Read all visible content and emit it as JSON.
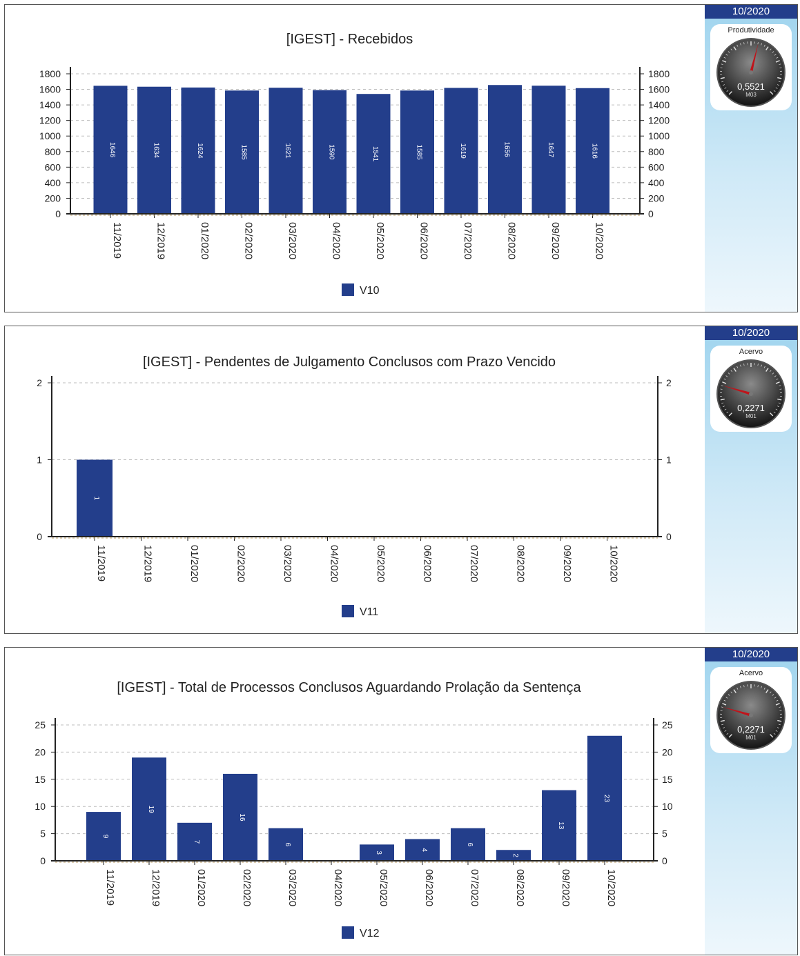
{
  "colors": {
    "bar": "#233e8b",
    "header": "#233e8b",
    "needle": "#c0141b"
  },
  "panels": [
    {
      "chart_data": {
        "type": "bar",
        "title": "[IGEST]  - Recebidos",
        "categories": [
          "11/2019",
          "12/2019",
          "01/2020",
          "02/2020",
          "03/2020",
          "04/2020",
          "05/2020",
          "06/2020",
          "07/2020",
          "08/2020",
          "09/2020",
          "10/2020"
        ],
        "series": [
          {
            "name": "V10",
            "values": [
              1646,
              1634,
              1624,
              1585,
              1621,
              1590,
              1541,
              1585,
              1619,
              1656,
              1647,
              1616
            ]
          }
        ],
        "yticks": [
          0,
          200,
          400,
          600,
          800,
          1000,
          1200,
          1400,
          1600,
          1800
        ],
        "ylim": [
          0,
          1800
        ],
        "grid": true,
        "legend_position": "bottom"
      },
      "side": {
        "period": "10/2020",
        "gauge_label": "Produtividade",
        "gauge_value": "0,5521",
        "gauge_code": "M03",
        "gauge_reading": 0.5521
      }
    },
    {
      "chart_data": {
        "type": "bar",
        "title": "[IGEST]  - Pendentes de Julgamento Conclusos com Prazo Vencido",
        "categories": [
          "11/2019",
          "12/2019",
          "01/2020",
          "02/2020",
          "03/2020",
          "04/2020",
          "05/2020",
          "06/2020",
          "07/2020",
          "08/2020",
          "09/2020",
          "10/2020"
        ],
        "series": [
          {
            "name": "V11",
            "values": [
              1,
              0,
              0,
              0,
              0,
              0,
              0,
              0,
              0,
              0,
              0,
              0
            ]
          }
        ],
        "yticks": [
          0,
          1,
          2
        ],
        "ylim": [
          0,
          2
        ],
        "grid": true,
        "legend_position": "bottom"
      },
      "side": {
        "period": "10/2020",
        "gauge_label": "Acervo",
        "gauge_value": "0,2271",
        "gauge_code": "M01",
        "gauge_reading": 0.2271
      }
    },
    {
      "chart_data": {
        "type": "bar",
        "title": "[IGEST]  - Total de Processos Conclusos Aguardando Prolação da Sentença",
        "categories": [
          "11/2019",
          "12/2019",
          "01/2020",
          "02/2020",
          "03/2020",
          "04/2020",
          "05/2020",
          "06/2020",
          "07/2020",
          "08/2020",
          "09/2020",
          "10/2020"
        ],
        "series": [
          {
            "name": "V12",
            "values": [
              9,
              19,
              7,
              16,
              6,
              0,
              3,
              4,
              6,
              2,
              13,
              23
            ]
          }
        ],
        "yticks": [
          0,
          5,
          10,
          15,
          20,
          25
        ],
        "ylim": [
          0,
          25
        ],
        "grid": true,
        "legend_position": "bottom"
      },
      "side": {
        "period": "10/2020",
        "gauge_label": "Acervo",
        "gauge_value": "0,2271",
        "gauge_code": "M01",
        "gauge_reading": 0.2271
      }
    }
  ]
}
